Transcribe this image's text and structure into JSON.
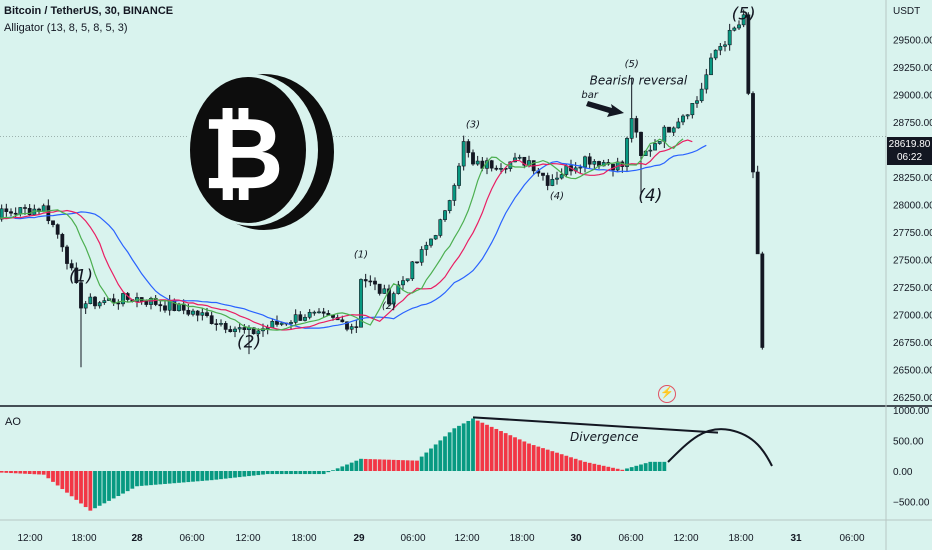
{
  "header": {
    "symbol": "Bitcoin / TetherUS, 30, BINANCE",
    "indicator": "Alligator (13, 8, 5, 8, 5, 3)"
  },
  "oscillator_label": "AO",
  "currency": "USDT",
  "last_price": "28619.80",
  "countdown": "06:22",
  "colors": {
    "background": "#d9f3ee",
    "bull": "#089981",
    "bear": "#f23645",
    "jaw": "#2962ff",
    "teeth": "#e91e63",
    "lips": "#4caf50"
  },
  "chart_data": [
    {
      "type": "candlestick",
      "title": "Bitcoin / TetherUS, 30, BINANCE",
      "ylim": [
        26250,
        29750
      ],
      "y_ticks": [
        26250,
        26500,
        26750,
        27000,
        27250,
        27500,
        27750,
        28000,
        28250,
        28500,
        28750,
        29000,
        29250,
        29500
      ],
      "x_ticks": [
        "12:00",
        "18:00",
        "28",
        "06:00",
        "12:00",
        "18:00",
        "29",
        "06:00",
        "12:00",
        "18:00",
        "30",
        "06:00",
        "12:00",
        "18:00",
        "31",
        "06:00"
      ],
      "current_price": 28619.8,
      "ohlc_waypoints": [
        {
          "x": "27 06:00",
          "close": 27880
        },
        {
          "x": "27 14:00",
          "close": 27970
        },
        {
          "x": "27 16:00",
          "close": 27650
        },
        {
          "x": "27 18:00",
          "close": 27100,
          "low": 26520
        },
        {
          "x": "28 00:00",
          "close": 27150
        },
        {
          "x": "28 06:00",
          "close": 27020
        },
        {
          "x": "28 12:00",
          "close": 26830,
          "low": 26640
        },
        {
          "x": "28 18:00",
          "close": 27000
        },
        {
          "x": "28 23:30",
          "close": 26900
        },
        {
          "x": "29 00:00",
          "close": 27350
        },
        {
          "x": "29 03:00",
          "close": 27150
        },
        {
          "x": "29 06:00",
          "close": 27480
        },
        {
          "x": "29 09:00",
          "close": 27900
        },
        {
          "x": "29 11:00",
          "close": 28550
        },
        {
          "x": "29 12:00",
          "close": 28350
        },
        {
          "x": "29 18:00",
          "close": 28400
        },
        {
          "x": "29 20:00",
          "close": 28220
        },
        {
          "x": "30 00:00",
          "close": 28420
        },
        {
          "x": "30 04:00",
          "close": 28350
        },
        {
          "x": "30 05:00",
          "close": 28800,
          "high": 29150
        },
        {
          "x": "30 06:00",
          "close": 28420,
          "low": 28100
        },
        {
          "x": "30 08:00",
          "close": 28620
        },
        {
          "x": "30 12:00",
          "close": 28950
        },
        {
          "x": "30 14:00",
          "close": 29400
        },
        {
          "x": "30 17:00",
          "close": 29680
        },
        {
          "x": "30 18:00",
          "close": 28300
        },
        {
          "x": "30 19:00",
          "close": 26700
        }
      ],
      "series": [
        {
          "name": "Jaw",
          "color": "#2962ff"
        },
        {
          "name": "Teeth",
          "color": "#e91e63"
        },
        {
          "name": "Lips",
          "color": "#4caf50"
        }
      ],
      "annotations": [
        {
          "text": "(1)",
          "x": "27 18:00",
          "y": 27300
        },
        {
          "text": "(2)",
          "x": "28 12:00",
          "y": 26700
        },
        {
          "text": "(1)",
          "x": "29 00:00",
          "y": 27520
        },
        {
          "text": "(2)",
          "x": "29 03:00",
          "y": 27050
        },
        {
          "text": "(3)",
          "x": "29 12:00",
          "y": 28700
        },
        {
          "text": "(4)",
          "x": "29 21:00",
          "y": 28050
        },
        {
          "text": "(5)",
          "x": "30 05:00",
          "y": 29250
        },
        {
          "text": "(4)",
          "x": "30 07:00",
          "y": 28030
        },
        {
          "text": "(5)",
          "x": "30 17:00",
          "y": 29680
        },
        {
          "text": "Bearish reversal",
          "x": "30 00:30",
          "y": 29090
        },
        {
          "text": "bar",
          "x": "30 00:30",
          "y": 28970
        }
      ]
    },
    {
      "type": "bar",
      "title": "AO",
      "ylim": [
        -750,
        1000
      ],
      "y_ticks": [
        -500,
        0,
        500,
        1000
      ],
      "waypoints": [
        {
          "x": "27 06:00",
          "value": 0
        },
        {
          "x": "27 14:00",
          "value": -60
        },
        {
          "x": "27 19:00",
          "value": -650
        },
        {
          "x": "28 00:00",
          "value": -250
        },
        {
          "x": "28 08:00",
          "value": -150
        },
        {
          "x": "28 14:00",
          "value": -50
        },
        {
          "x": "28 20:00",
          "value": -50
        },
        {
          "x": "29 00:00",
          "value": 200
        },
        {
          "x": "29 06:00",
          "value": 170
        },
        {
          "x": "29 10:00",
          "value": 700
        },
        {
          "x": "29 12:00",
          "value": 860
        },
        {
          "x": "29 18:00",
          "value": 450
        },
        {
          "x": "30 00:00",
          "value": 150
        },
        {
          "x": "30 04:00",
          "value": 20
        },
        {
          "x": "30 07:00",
          "value": 150
        },
        {
          "x": "30 09:00",
          "value": 150
        }
      ],
      "annotations": [
        {
          "text": "Divergence"
        }
      ]
    }
  ]
}
